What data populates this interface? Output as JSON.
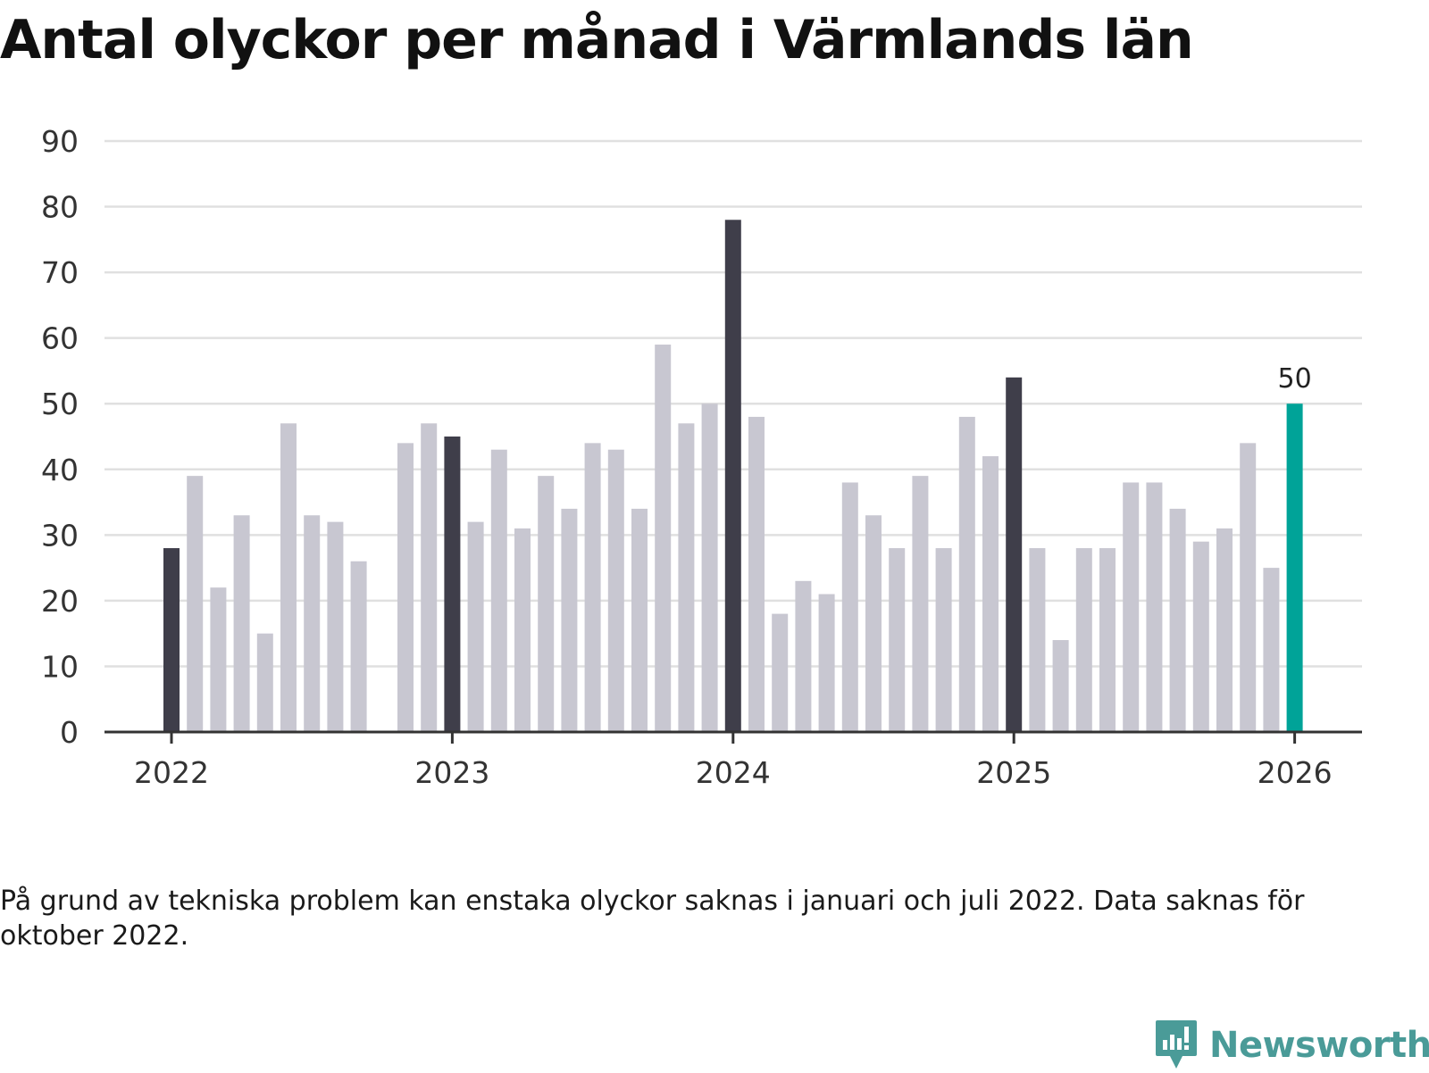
{
  "chart_data": {
    "type": "bar",
    "title": "Antal olyckor per månad i Värmlands län",
    "xlabel": "",
    "ylabel": "",
    "ylim": [
      0,
      90
    ],
    "yticks": [
      0,
      10,
      20,
      30,
      40,
      50,
      60,
      70,
      80,
      90
    ],
    "xticks": [
      "2022",
      "2023",
      "2024",
      "2025",
      "2026"
    ],
    "categories": [
      "2022-01",
      "2022-02",
      "2022-03",
      "2022-04",
      "2022-05",
      "2022-06",
      "2022-07",
      "2022-08",
      "2022-09",
      "2022-10",
      "2022-11",
      "2022-12",
      "2023-01",
      "2023-02",
      "2023-03",
      "2023-04",
      "2023-05",
      "2023-06",
      "2023-07",
      "2023-08",
      "2023-09",
      "2023-10",
      "2023-11",
      "2023-12",
      "2024-01",
      "2024-02",
      "2024-03",
      "2024-04",
      "2024-05",
      "2024-06",
      "2024-07",
      "2024-08",
      "2024-09",
      "2024-10",
      "2024-11",
      "2024-12",
      "2025-01",
      "2025-02",
      "2025-03",
      "2025-04",
      "2025-05",
      "2025-06",
      "2025-07",
      "2025-08",
      "2025-09",
      "2025-10",
      "2025-11",
      "2025-12",
      "2026-01"
    ],
    "values": [
      28,
      39,
      22,
      33,
      15,
      47,
      33,
      32,
      26,
      null,
      44,
      47,
      45,
      32,
      43,
      31,
      39,
      34,
      44,
      43,
      34,
      59,
      47,
      50,
      78,
      48,
      18,
      23,
      21,
      38,
      33,
      28,
      39,
      28,
      48,
      42,
      54,
      28,
      14,
      28,
      28,
      38,
      38,
      34,
      29,
      31,
      44,
      25,
      50
    ],
    "highlight_label": "50",
    "colors": {
      "regular": "#c8c7d1",
      "january": "#3f3e4a",
      "latest": "#00a398",
      "grid": "#e0e0e0",
      "axis": "#333333"
    }
  },
  "footnote": "På grund av tekniska problem kan enstaka olyckor saknas i januari och juli 2022. Data saknas för oktober 2022.",
  "brand": {
    "name": "Newsworthy",
    "color": "#4a9b98"
  }
}
